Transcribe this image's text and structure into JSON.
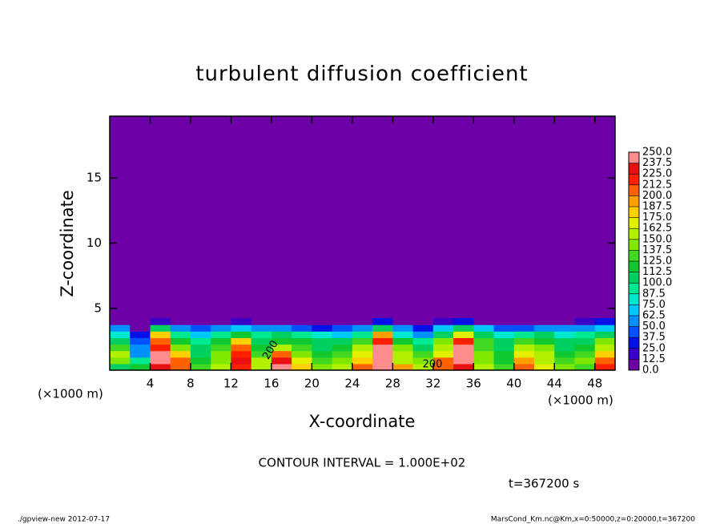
{
  "chart_data": {
    "type": "heatmap",
    "title": "turbulent diffusion coefficient",
    "x_label": "X-coordinate",
    "y_label": "Z-coordinate",
    "x_unit": "(×1000 m)",
    "y_unit": "(×1000 m)",
    "xlim": [
      0,
      50
    ],
    "ylim": [
      0.25,
      19.75
    ],
    "xticks": [
      4,
      8,
      12,
      16,
      20,
      24,
      28,
      32,
      36,
      40,
      44,
      48
    ],
    "yticks": [
      5,
      10,
      15
    ],
    "x": [
      1,
      3,
      5,
      7,
      9,
      11,
      13,
      15,
      17,
      19,
      21,
      23,
      25,
      27,
      29,
      31,
      33,
      35,
      37,
      39,
      41,
      43,
      45,
      47,
      49
    ],
    "z": [
      0.5,
      1.0,
      1.5,
      2.0,
      2.5,
      3.0,
      3.5,
      4.0
    ],
    "values": [
      [
        100,
        120,
        230,
        210,
        130,
        150,
        220,
        160,
        240,
        180,
        140,
        150,
        200,
        250,
        190,
        150,
        210,
        230,
        150,
        130,
        200,
        170,
        140,
        130,
        220
      ],
      [
        140,
        90,
        240,
        200,
        120,
        140,
        230,
        150,
        230,
        170,
        130,
        140,
        180,
        250,
        160,
        140,
        200,
        240,
        140,
        120,
        190,
        160,
        130,
        140,
        200
      ],
      [
        150,
        60,
        240,
        180,
        110,
        140,
        220,
        130,
        200,
        140,
        120,
        130,
        170,
        250,
        150,
        130,
        170,
        245,
        140,
        120,
        170,
        150,
        120,
        130,
        180
      ],
      [
        130,
        50,
        220,
        140,
        100,
        130,
        210,
        120,
        150,
        130,
        110,
        120,
        150,
        240,
        140,
        110,
        160,
        240,
        130,
        110,
        150,
        140,
        110,
        120,
        160
      ],
      [
        110,
        40,
        200,
        120,
        90,
        120,
        180,
        100,
        120,
        120,
        100,
        100,
        130,
        220,
        120,
        90,
        140,
        220,
        130,
        100,
        130,
        120,
        100,
        110,
        140
      ],
      [
        80,
        30,
        180,
        90,
        70,
        90,
        120,
        90,
        100,
        90,
        80,
        70,
        90,
        190,
        80,
        60,
        110,
        170,
        100,
        80,
        90,
        100,
        80,
        90,
        110
      ],
      [
        50,
        10,
        110,
        60,
        40,
        50,
        70,
        60,
        60,
        40,
        30,
        40,
        60,
        100,
        50,
        30,
        70,
        100,
        70,
        40,
        40,
        60,
        50,
        60,
        70
      ],
      [
        10,
        0,
        20,
        10,
        0,
        10,
        20,
        10,
        10,
        0,
        0,
        0,
        10,
        30,
        10,
        0,
        20,
        30,
        10,
        0,
        0,
        10,
        0,
        20,
        30
      ]
    ],
    "colorbar": {
      "levels": [
        {
          "value": 0,
          "label": "0.0"
        },
        {
          "value": 12.5,
          "label": "12.5"
        },
        {
          "value": 25,
          "label": "25.0"
        },
        {
          "value": 37.5,
          "label": "37.5"
        },
        {
          "value": 50,
          "label": "50.0"
        },
        {
          "value": 62.5,
          "label": "62.5"
        },
        {
          "value": 75,
          "label": "75.0"
        },
        {
          "value": 87.5,
          "label": "87.5"
        },
        {
          "value": 100,
          "label": "100.0"
        },
        {
          "value": 112.5,
          "label": "112.5"
        },
        {
          "value": 125,
          "label": "125.0"
        },
        {
          "value": 137.5,
          "label": "137.5"
        },
        {
          "value": 150,
          "label": "150.0"
        },
        {
          "value": 162.5,
          "label": "162.5"
        },
        {
          "value": 175,
          "label": "175.0"
        },
        {
          "value": 187.5,
          "label": "187.5"
        },
        {
          "value": 200,
          "label": "200.0"
        },
        {
          "value": 212.5,
          "label": "212.5"
        },
        {
          "value": 225,
          "label": "225.0"
        },
        {
          "value": 237.5,
          "label": "237.5"
        },
        {
          "value": 250,
          "label": "250.0"
        }
      ],
      "colors": [
        "#6e00a8",
        "#3a00c8",
        "#0010e8",
        "#0050ff",
        "#0090ff",
        "#00c8ff",
        "#00e8d0",
        "#00e890",
        "#00d060",
        "#10c830",
        "#40d820",
        "#80e800",
        "#b0f000",
        "#e0f000",
        "#ffd000",
        "#ffa000",
        "#ff6000",
        "#ff2000",
        "#e81010",
        "#ff8c8c"
      ]
    },
    "contour_labels": [
      "200",
      "200"
    ],
    "contour_interval": "CONTOUR INTERVAL = 1.000E+02",
    "time_label": "t=367200 s",
    "footer_left": "./gpview-new  2012-07-17",
    "footer_right": "MarsCond_Km.nc@Km,x=0:50000,z=0:20000,t=367200"
  }
}
